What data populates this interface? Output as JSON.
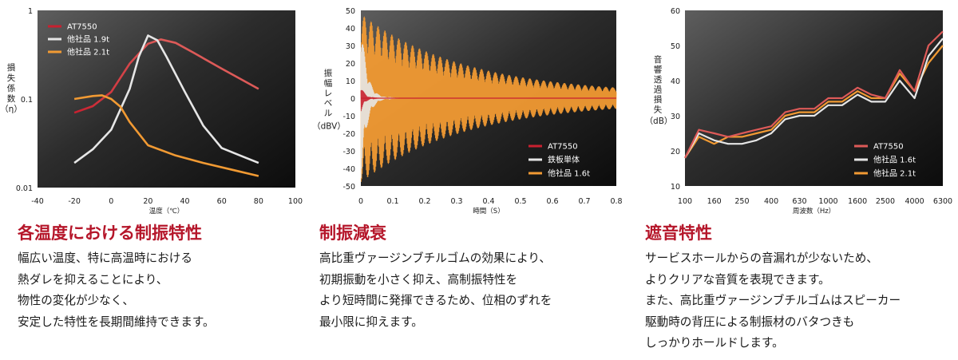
{
  "colors": {
    "red": "#c8202f",
    "salmon": "#dd5a58",
    "white": "#e6e6e6",
    "orange": "#f19a33",
    "heading": "#b5162a"
  },
  "panels": [
    {
      "heading": "各温度における制振特性",
      "desc": [
        "幅広い温度、特に高温時における",
        "熱ダレを抑えることにより、",
        "物性の変化が少なく、",
        "安定した特性を長期間維持できます。"
      ]
    },
    {
      "heading": "制振減衰",
      "desc": [
        "高比重ヴァージンブチルゴムの効果により、",
        "初期振動を小さく抑え、高制振特性を",
        "より短時間に発揮できるため、位相のずれを",
        "最小限に抑えます。"
      ]
    },
    {
      "heading": "遮音特性",
      "desc": [
        "サービスホールからの音漏れが少ないため、",
        "よりクリアな音質を表現できます。",
        "また、高比重ヴァージンブチルゴムはスピーカー",
        "駆動時の背圧による制振材のバタつきも",
        "しっかりホールドします。"
      ]
    }
  ],
  "chart_data": [
    {
      "type": "line",
      "xlabel": "温度（℃）",
      "ylabel": [
        "損",
        "失",
        "係",
        "数",
        "（η）"
      ],
      "xlim": [
        -40,
        100
      ],
      "ylim": [
        0.01,
        1
      ],
      "yscale": "log",
      "xticks": [
        "-40",
        "-20",
        "0",
        "20",
        "40",
        "60",
        "80",
        "100"
      ],
      "yticks": [
        "1",
        "0.1",
        "0.01"
      ],
      "legend_position": "top-left",
      "series": [
        {
          "name": "AT7550",
          "color": "#c8202f",
          "tail_color": "#dd5a58",
          "x": [
            -20,
            -10,
            0,
            10,
            20,
            27,
            35,
            45,
            60,
            80
          ],
          "y": [
            0.07,
            0.083,
            0.12,
            0.25,
            0.42,
            0.47,
            0.43,
            0.33,
            0.22,
            0.13
          ]
        },
        {
          "name": "他社品 1.9t",
          "color": "#e6e6e6",
          "x": [
            -20,
            -10,
            0,
            10,
            15,
            20,
            25,
            30,
            40,
            50,
            60,
            70,
            80
          ],
          "y": [
            0.019,
            0.027,
            0.045,
            0.13,
            0.3,
            0.52,
            0.46,
            0.3,
            0.12,
            0.05,
            0.028,
            0.023,
            0.019
          ]
        },
        {
          "name": "他社品 2.1t",
          "color": "#f19a33",
          "x": [
            -20,
            -10,
            -5,
            0,
            5,
            10,
            20,
            35,
            50,
            65,
            80
          ],
          "y": [
            0.1,
            0.108,
            0.11,
            0.1,
            0.082,
            0.055,
            0.03,
            0.023,
            0.019,
            0.016,
            0.0135
          ]
        }
      ]
    },
    {
      "type": "line",
      "xlabel": "時間（S）",
      "ylabel": [
        "振",
        "幅",
        "レ",
        "ベ",
        "ル",
        "（dBV）"
      ],
      "xlim": [
        0,
        0.8
      ],
      "ylim": [
        -50,
        50
      ],
      "xticks": [
        "0",
        "0.1",
        "0.2",
        "0.3",
        "0.4",
        "0.5",
        "0.6",
        "0.7",
        "0.8"
      ],
      "yticks": [
        "50",
        "40",
        "30",
        "20",
        "10",
        "0",
        "-10",
        "-20",
        "-30",
        "-40",
        "-50"
      ],
      "legend_position": "bottom-right",
      "series": [
        {
          "name": "AT7550",
          "color": "#c8202f",
          "initial_amplitude": 8,
          "decay_time": 0.012
        },
        {
          "name": "鉄板単体",
          "color": "#e6e6e6",
          "initial_amplitude": 48,
          "decay_time": 0.018
        },
        {
          "name": "他社品 1.6t",
          "color": "#f19a33",
          "initial_amplitude": 46,
          "decay_time": 0.33,
          "floor": 2
        }
      ]
    },
    {
      "type": "line",
      "xlabel": "周波数（Hz）",
      "ylabel": [
        "音",
        "響",
        "透",
        "過",
        "損",
        "失",
        "（dB）"
      ],
      "ylim": [
        10,
        60
      ],
      "xticks": [
        "100",
        "160",
        "250",
        "400",
        "630",
        "1000",
        "1600",
        "2500",
        "4000",
        "6300"
      ],
      "yticks": [
        "60",
        "50",
        "40",
        "30",
        "20",
        "10"
      ],
      "legend_position": "bottom-right",
      "series": [
        {
          "name": "AT7550",
          "color": "#dd5a58",
          "x": [
            100,
            125,
            160,
            200,
            250,
            315,
            400,
            500,
            630,
            800,
            1000,
            1250,
            1600,
            2000,
            2500,
            3150,
            4000,
            5000,
            6300
          ],
          "y": [
            18,
            26,
            25,
            24,
            25,
            26,
            27,
            31,
            32,
            32,
            35,
            35,
            38,
            36,
            35,
            43,
            37,
            50,
            54
          ]
        },
        {
          "name": "他社品 1.6t",
          "color": "#e6e6e6",
          "x": [
            100,
            125,
            160,
            200,
            250,
            315,
            400,
            500,
            630,
            800,
            1000,
            1250,
            1600,
            2000,
            2500,
            3150,
            4000,
            5000,
            6300
          ],
          "y": [
            18,
            25,
            23,
            22,
            22,
            23,
            25,
            29,
            30,
            30,
            33,
            33,
            36,
            34,
            34,
            40,
            35,
            47,
            52
          ]
        },
        {
          "name": "他社品 2.1t",
          "color": "#f19a33",
          "x": [
            100,
            125,
            160,
            200,
            250,
            315,
            400,
            500,
            630,
            800,
            1000,
            1250,
            1600,
            2000,
            2500,
            3150,
            4000,
            5000,
            6300
          ],
          "y": [
            18,
            24,
            22,
            24,
            24,
            25,
            26,
            30,
            31,
            31,
            34,
            34,
            37,
            35,
            35,
            42,
            37,
            45,
            50
          ]
        }
      ]
    }
  ]
}
